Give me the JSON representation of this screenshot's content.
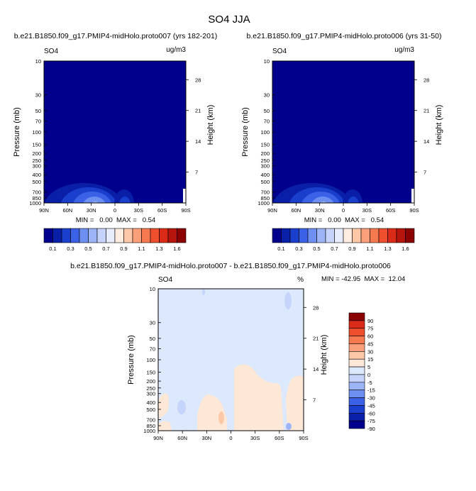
{
  "figure": {
    "title": "SO4 JJA"
  },
  "pressure_ticks": [
    "10",
    "30",
    "50",
    "70",
    "100",
    "150",
    "200",
    "250",
    "300",
    "400",
    "500",
    "700",
    "850",
    "1000"
  ],
  "height_ticks": [
    "28",
    "21",
    "14",
    "7"
  ],
  "lat_ticks": [
    "90N",
    "60N",
    "30N",
    "0",
    "30S",
    "60S",
    "90S"
  ],
  "colors": {
    "abs_palette": [
      "#00008c",
      "#0a1fa8",
      "#1a3fcc",
      "#3b62e6",
      "#6e8ff2",
      "#9db4f7",
      "#c6d3fa",
      "#e8edfb",
      "#ffece1",
      "#fdc8a8",
      "#fba07a",
      "#f7794f",
      "#ef4f2c",
      "#d92b18",
      "#b5150d",
      "#8b0000"
    ],
    "diff_palette": [
      "#00008c",
      "#0a1fa8",
      "#1a3fcc",
      "#3b62e6",
      "#6e8ff2",
      "#9db4f7",
      "#c6d3fa",
      "#dce8fb",
      "#fde8d8",
      "#fdc8a8",
      "#fba07a",
      "#f7794f",
      "#ef4f2c",
      "#d92b18",
      "#8b0000"
    ]
  },
  "panels": {
    "p1": {
      "title": "b.e21.B1850.f09_g17.PMIP4-midHolo.proto007 (yrs 182-201)",
      "var": "SO4",
      "units": "ug/m3",
      "ylabel": "Pressure (mb)",
      "ylabel2": "Height (km)",
      "stats": "MIN =   0.00  MAX =   0.54"
    },
    "p2": {
      "title": "b.e21.B1850.f09_g17.PMIP4-midHolo.proto006 (yrs 31-50)",
      "var": "SO4",
      "units": "ug/m3",
      "ylabel": "Pressure (mb)",
      "ylabel2": "Height (km)",
      "stats": "MIN =   0.00  MAX =   0.54"
    },
    "p3": {
      "title": "b.e21.B1850.f09_g17.PMIP4-midHolo.proto007 - b.e21.B1850.f09_g17.PMIP4-midHolo.proto006",
      "var": "SO4",
      "units": "%",
      "ylabel": "Pressure (mb)",
      "ylabel2": "Height (km)",
      "stats": "MIN = -42.95  MAX =  12.04"
    }
  },
  "colorbar_abs": {
    "labels": [
      "0.1",
      "0.3",
      "0.5",
      "0.7",
      "0.9",
      "1.1",
      "1.3",
      "1.6"
    ]
  },
  "colorbar_diff": {
    "labels": [
      "90",
      "75",
      "60",
      "45",
      "30",
      "15",
      "5",
      "0",
      "-5",
      "-15",
      "-30",
      "-45",
      "-60",
      "-75",
      "-90"
    ]
  },
  "chart_data": [
    {
      "type": "heatmap",
      "title": "b.e21.B1850.f09_g17.PMIP4-midHolo.proto007 (yrs 182-201)",
      "variable": "SO4",
      "units": "ug/m3",
      "xlabel": "",
      "ylabel": "Pressure (mb)",
      "ylabel_right": "Height (km)",
      "x_ticks": [
        "90N",
        "60N",
        "30N",
        "0",
        "30S",
        "60S",
        "90S"
      ],
      "y_ticks": [
        10,
        30,
        50,
        70,
        100,
        150,
        200,
        250,
        300,
        400,
        500,
        700,
        850,
        1000
      ],
      "y_scale": "log",
      "ylim": [
        1000,
        10
      ],
      "min": 0.0,
      "max": 0.54,
      "features": [
        {
          "desc": "elevated SO4 near surface",
          "lat": 25,
          "pressure_range": [
            500,
            1000
          ],
          "peak": 0.54
        }
      ]
    },
    {
      "type": "heatmap",
      "title": "b.e21.B1850.f09_g17.PMIP4-midHolo.proto006 (yrs 31-50)",
      "variable": "SO4",
      "units": "ug/m3",
      "xlabel": "",
      "ylabel": "Pressure (mb)",
      "ylabel_right": "Height (km)",
      "x_ticks": [
        "90N",
        "60N",
        "30N",
        "0",
        "30S",
        "60S",
        "90S"
      ],
      "y_ticks": [
        10,
        30,
        50,
        70,
        100,
        150,
        200,
        250,
        300,
        400,
        500,
        700,
        850,
        1000
      ],
      "y_scale": "log",
      "ylim": [
        1000,
        10
      ],
      "min": 0.0,
      "max": 0.54
    },
    {
      "type": "heatmap",
      "title": "b.e21.B1850.f09_g17.PMIP4-midHolo.proto007 - b.e21.B1850.f09_g17.PMIP4-midHolo.proto006",
      "variable": "SO4",
      "units": "%",
      "xlabel": "",
      "ylabel": "Pressure (mb)",
      "ylabel_right": "Height (km)",
      "x_ticks": [
        "90N",
        "60N",
        "30N",
        "0",
        "30S",
        "60S",
        "90S"
      ],
      "y_ticks": [
        10,
        30,
        50,
        70,
        100,
        150,
        200,
        250,
        300,
        400,
        500,
        700,
        850,
        1000
      ],
      "y_scale": "log",
      "ylim": [
        1000,
        10
      ],
      "min": -42.95,
      "max": 12.04,
      "contour_levels": [
        -90,
        -75,
        -60,
        -45,
        -30,
        -15,
        -5,
        0,
        5,
        15,
        30,
        45,
        60,
        75,
        90
      ]
    }
  ]
}
